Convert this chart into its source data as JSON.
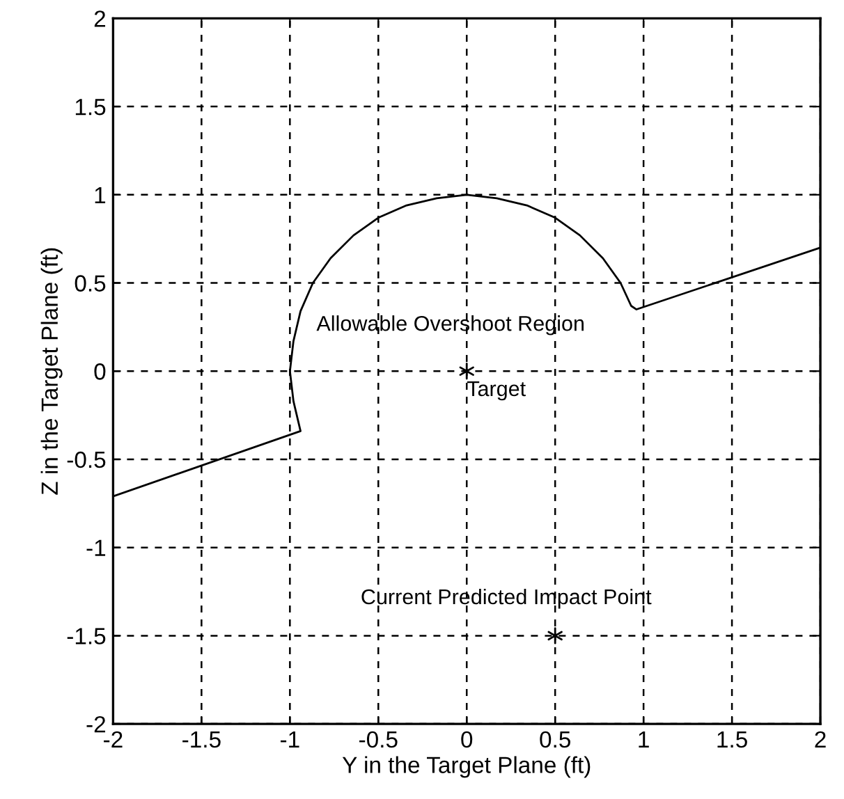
{
  "chart_data": {
    "type": "line",
    "xlabel": "Y in the Target Plane (ft)",
    "ylabel": "Z in the Target Plane (ft)",
    "series": [
      {
        "color": "#000000",
        "x": [
          -2,
          -0.94,
          -0.98,
          -1.0,
          -0.98,
          -0.94,
          -0.87,
          -0.77,
          -0.64,
          -0.5,
          -0.34,
          -0.17,
          0,
          0.17,
          0.34,
          0.5,
          0.64,
          0.77,
          0.87,
          0.93,
          0.96,
          2
        ],
        "values": [
          -0.71,
          -0.34,
          -0.17,
          0,
          0.17,
          0.34,
          0.5,
          0.64,
          0.77,
          0.87,
          0.94,
          0.98,
          1,
          0.98,
          0.94,
          0.87,
          0.77,
          0.64,
          0.5,
          0.37,
          0.35,
          0.7
        ]
      },
      {
        "type": "scatter",
        "color": "#000000",
        "marker": "cross",
        "x": [
          0,
          0.5
        ],
        "values": [
          0,
          -1.5
        ]
      }
    ],
    "annotations": [
      "Allowable Overshoot Region",
      "Target",
      "Current Predicted Impact Point"
    ],
    "xlim": [
      -2,
      2
    ],
    "ylim": [
      -2,
      2
    ],
    "xticks": [
      -2,
      -1.5,
      -1,
      -0.5,
      0,
      0.5,
      1,
      1.5,
      2
    ],
    "yticks": [
      -2,
      -1.5,
      -1,
      -0.5,
      0,
      0.5,
      1,
      1.5,
      2
    ],
    "grid": true,
    "line_style": "solid"
  }
}
